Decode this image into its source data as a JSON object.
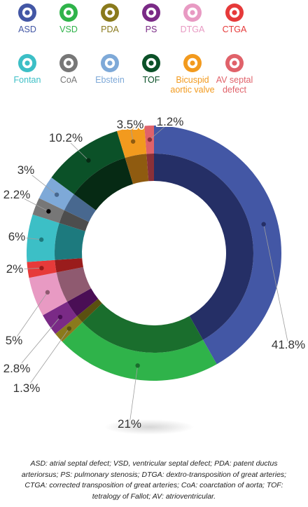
{
  "legend": [
    {
      "label": "ASD",
      "color": "#4357a5"
    },
    {
      "label": "VSD",
      "color": "#2fb34a"
    },
    {
      "label": "PDA",
      "color": "#8a7a1c"
    },
    {
      "label": "PS",
      "color": "#7a2a86"
    },
    {
      "label": "DTGA",
      "color": "#e89ac3"
    },
    {
      "label": "CTGA",
      "color": "#e63a3a"
    },
    {
      "label": "Fontan",
      "color": "#3cbfc6"
    },
    {
      "label": "CoA",
      "color": "#777777"
    },
    {
      "label": "Ebstein",
      "color": "#7ea9d8"
    },
    {
      "label": "TOF",
      "color": "#0b5128"
    },
    {
      "label": "Bicuspid aortic valve",
      "color": "#f29a1e"
    },
    {
      "label": "AV septal defect",
      "color": "#e0626a"
    }
  ],
  "chart_data": {
    "type": "pie",
    "title": "",
    "slices": [
      {
        "category": "ASD",
        "value": 41.8,
        "label": "41.8%",
        "color": "#4357a5",
        "inner": "#252f66"
      },
      {
        "category": "VSD",
        "value": 21,
        "label": "21%",
        "color": "#2fb34a",
        "inner": "#1a6e2d"
      },
      {
        "category": "PDA",
        "value": 1.3,
        "label": "1.3%",
        "color": "#8a7a1c",
        "inner": "#5a5010"
      },
      {
        "category": "PS",
        "value": 2.8,
        "label": "2.8%",
        "color": "#7a2a86",
        "inner": "#4a0e55"
      },
      {
        "category": "DTGA",
        "value": 5,
        "label": "5%",
        "color": "#e89ac3",
        "inner": "#8f5a70"
      },
      {
        "category": "CTGA",
        "value": 2,
        "label": "2%",
        "color": "#e63a3a",
        "inner": "#9a1c1c"
      },
      {
        "category": "Fontan",
        "value": 6,
        "label": "6%",
        "color": "#3cbfc6",
        "inner": "#1d7a7e"
      },
      {
        "category": "CoA",
        "value": 2.2,
        "label": "2.2%",
        "color": "#777777",
        "inner": "#4d4d4d"
      },
      {
        "category": "Ebstein",
        "value": 3,
        "label": "3%",
        "color": "#7ea9d8",
        "inner": "#48688f"
      },
      {
        "category": "TOF",
        "value": 10.2,
        "label": "10.2%",
        "color": "#0b5128",
        "inner": "#062a14"
      },
      {
        "category": "Bicuspid aortic valve",
        "value": 3.5,
        "label": "3.5%",
        "color": "#f29a1e",
        "inner": "#8f5b10"
      },
      {
        "category": "AV septal defect",
        "value": 1.2,
        "label": "1.2%",
        "color": "#e0626a",
        "inner": "#8a3038"
      }
    ]
  },
  "footnote": "ASD: atrial septal defect; VSD, ventricular septal defect; PDA: patent ductus arteriorsus; PS: pulmonary stenosis; DTGA: dextro-transposition of great arteries; CTGA: corrected transposition of great arteries; CoA: coarctation of aorta; TOF: tetralogy of Fallot; AV: atrioventricular."
}
